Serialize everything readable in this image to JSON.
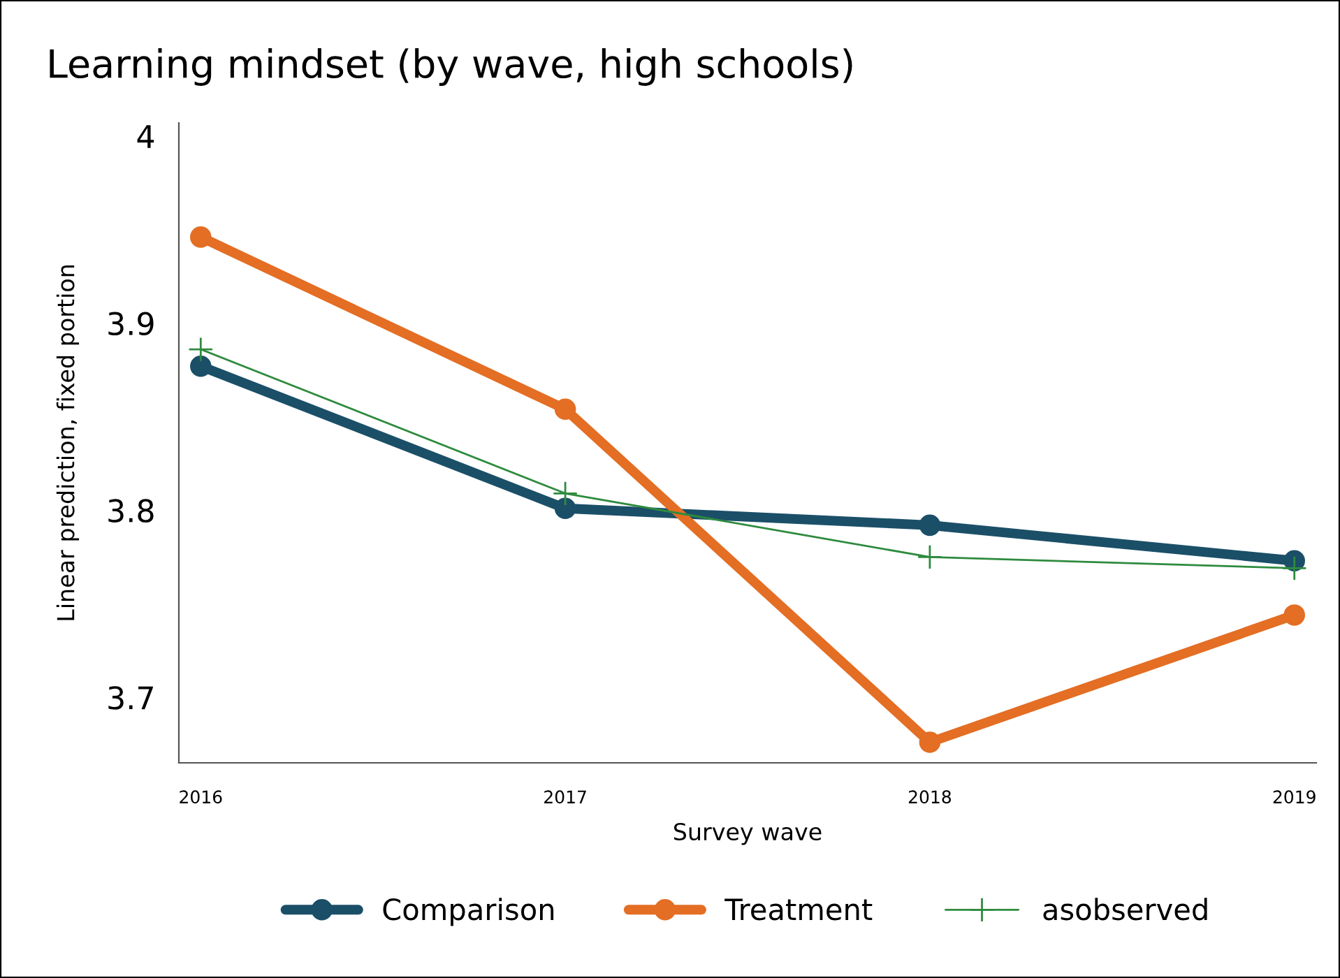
{
  "chart_data": {
    "type": "line",
    "title": "Learning mindset (by wave, high schools)",
    "xlabel": "Survey wave",
    "ylabel": "Linear prediction, fixed portion",
    "x": [
      2016,
      2017,
      2018,
      2019
    ],
    "series": [
      {
        "name": "Comparison",
        "color": "#1b4f68",
        "values": [
          3.877,
          3.801,
          3.792,
          3.773
        ],
        "marker": "circle"
      },
      {
        "name": "Treatment",
        "color": "#e36e24",
        "values": [
          3.946,
          3.854,
          3.676,
          3.744
        ],
        "marker": "circle"
      },
      {
        "name": "asobserved",
        "color": "#2e8b3e",
        "values": [
          3.886,
          3.809,
          3.775,
          3.769
        ],
        "marker": "cross"
      }
    ],
    "xlim": [
      2015.94,
      2019.06
    ],
    "ylim": [
      3.665,
      4.007
    ],
    "xticks": [
      2016,
      2017,
      2018,
      2019
    ],
    "yticks": [
      {
        "value": 3.7,
        "label": "3.7"
      },
      {
        "value": 3.8,
        "label": "3.8"
      },
      {
        "value": 3.9,
        "label": "3.9"
      },
      4
    ],
    "grid": false,
    "legend": "bottom",
    "line_style": "solid"
  }
}
